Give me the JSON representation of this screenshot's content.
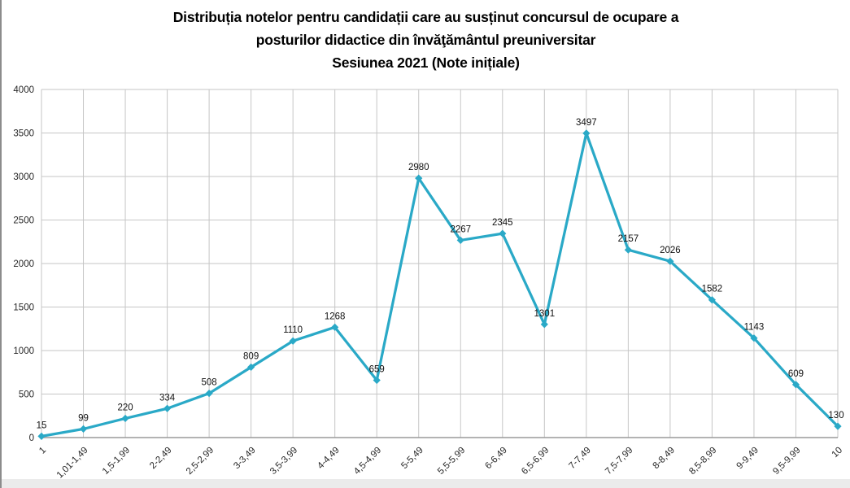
{
  "page": {
    "background": "#ffffff",
    "left_border_color": "#8c8c8c",
    "bottom_strip_color": "#ebebeb"
  },
  "title": {
    "lines": [
      "Distribuția notelor pentru candidații care au susținut concursul de ocupare a",
      "posturilor didactice din învăţământul preuniversitar",
      "Sesiunea 2021 (Note inițiale)"
    ]
  },
  "chart_data": {
    "type": "line",
    "title": "Distribuția notelor pentru candidații care au susținut concursul de ocupare a posturilor didactice din învăţământul preuniversitar Sesiunea 2021 (Note inițiale)",
    "categories": [
      "1",
      "1,01-1,49",
      "1,5-1,99",
      "2-2,49",
      "2,5-2,99",
      "3-3,49",
      "3,5-3,99",
      "4-4,49",
      "4,5-4,99",
      "5-5,49",
      "5,5-5,99",
      "6-6,49",
      "6,5-6,99",
      "7-7,49",
      "7,5-7,99",
      "8-8,49",
      "8,5-8,99",
      "9-9,49",
      "9,5-9,99",
      "10"
    ],
    "values": [
      15,
      99,
      220,
      334,
      508,
      809,
      1110,
      1268,
      659,
      2980,
      2267,
      2345,
      1301,
      3497,
      2157,
      2026,
      1582,
      1143,
      609,
      130
    ],
    "xlabel": "",
    "ylabel": "",
    "ylim": [
      0,
      4000
    ],
    "ytick_step": 500,
    "ytick_labels": [
      "0",
      "500",
      "1000",
      "1500",
      "2000",
      "2500",
      "3000",
      "3500",
      "4000"
    ],
    "grid": true,
    "legend_position": "none",
    "marker": "diamond",
    "data_labels_visible": true,
    "colors": {
      "line": "#2AA9C7",
      "marker": "#2AA9C7",
      "grid": "#c6c6c6",
      "axis": "#9a9a9a",
      "data_label": "#111111",
      "tick_label": "#262626"
    }
  }
}
